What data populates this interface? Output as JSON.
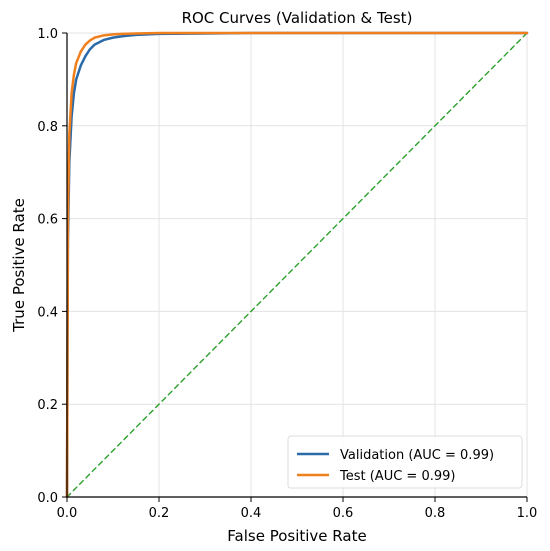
{
  "chart_data": {
    "type": "line",
    "title": "ROC Curves (Validation & Test)",
    "xlabel": "False Positive Rate",
    "ylabel": "True Positive Rate",
    "xlim": [
      0,
      1
    ],
    "ylim": [
      0,
      1
    ],
    "xticks": [
      "0.0",
      "0.2",
      "0.4",
      "0.6",
      "0.8",
      "1.0"
    ],
    "yticks": [
      "0.0",
      "0.2",
      "0.4",
      "0.6",
      "0.8",
      "1.0"
    ],
    "grid": true,
    "legend_position": "lower-right",
    "series": [
      {
        "name": "Validation (AUC = 0.99)",
        "color": "#2b6aa8",
        "x": [
          0,
          0.002,
          0.005,
          0.01,
          0.015,
          0.02,
          0.03,
          0.04,
          0.05,
          0.06,
          0.08,
          0.1,
          0.12,
          0.15,
          0.2,
          0.3,
          0.4,
          0.6,
          0.8,
          1.0
        ],
        "y": [
          0,
          0.55,
          0.72,
          0.82,
          0.87,
          0.9,
          0.93,
          0.95,
          0.965,
          0.975,
          0.985,
          0.99,
          0.993,
          0.996,
          0.998,
          0.999,
          1.0,
          1.0,
          1.0,
          1.0
        ]
      },
      {
        "name": "Test (AUC = 0.99)",
        "color": "#f07f1e",
        "x": [
          0,
          0.002,
          0.005,
          0.01,
          0.015,
          0.02,
          0.03,
          0.04,
          0.05,
          0.06,
          0.08,
          0.1,
          0.12,
          0.15,
          0.2,
          0.3,
          0.4,
          0.6,
          0.8,
          1.0
        ],
        "y": [
          0,
          0.6,
          0.78,
          0.87,
          0.91,
          0.935,
          0.96,
          0.975,
          0.984,
          0.99,
          0.995,
          0.997,
          0.998,
          0.999,
          1.0,
          1.0,
          1.0,
          1.0,
          1.0,
          1.0
        ]
      },
      {
        "name": "",
        "color": "#2ca02c",
        "style": "dashed",
        "x": [
          0,
          1
        ],
        "y": [
          0,
          1
        ]
      }
    ]
  }
}
